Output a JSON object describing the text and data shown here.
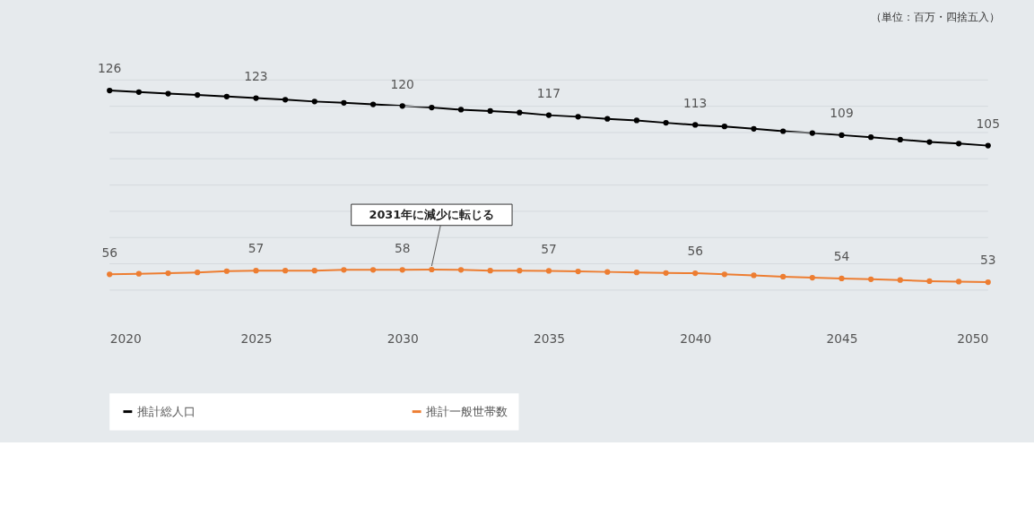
{
  "chart_data": {
    "type": "line",
    "x": [
      2020,
      2021,
      2022,
      2023,
      2024,
      2025,
      2026,
      2027,
      2028,
      2029,
      2030,
      2031,
      2032,
      2033,
      2034,
      2035,
      2036,
      2037,
      2038,
      2039,
      2040,
      2041,
      2042,
      2043,
      2044,
      2045,
      2046,
      2047,
      2048,
      2049,
      2050
    ],
    "series": [
      {
        "name": "推計総人口",
        "color": "#000000",
        "values": [
          126,
          125.4,
          124.8,
          124.3,
          123.7,
          123.1,
          122.5,
          121.8,
          121.3,
          120.7,
          120.1,
          119.5,
          118.7,
          118.2,
          117.6,
          116.6,
          116.0,
          115.2,
          114.6,
          113.7,
          112.9,
          112.3,
          111.4,
          110.5,
          109.8,
          109.0,
          108.2,
          107.3,
          106.4,
          105.8,
          105.0
        ],
        "value_labels": [
          "126",
          null,
          null,
          null,
          null,
          "123",
          null,
          null,
          null,
          null,
          "120",
          null,
          null,
          null,
          null,
          "117",
          null,
          null,
          null,
          null,
          "113",
          null,
          null,
          null,
          null,
          "109",
          null,
          null,
          null,
          null,
          "105"
        ]
      },
      {
        "name": "推計一般世帯数",
        "color": "#ed7d31",
        "values": [
          56.0,
          56.2,
          56.4,
          56.7,
          57.2,
          57.4,
          57.4,
          57.4,
          57.7,
          57.7,
          57.7,
          57.8,
          57.7,
          57.4,
          57.4,
          57.3,
          57.1,
          56.9,
          56.7,
          56.5,
          56.4,
          56.0,
          55.6,
          55.1,
          54.7,
          54.4,
          54.1,
          53.8,
          53.4,
          53.2,
          53.0
        ],
        "value_labels": [
          "56",
          null,
          null,
          null,
          null,
          "57",
          null,
          null,
          null,
          null,
          "58",
          null,
          null,
          null,
          null,
          "57",
          null,
          null,
          null,
          null,
          "56",
          null,
          null,
          null,
          null,
          "54",
          null,
          null,
          null,
          null,
          "53"
        ]
      }
    ],
    "xlim": [
      2020,
      2050
    ],
    "xticks": [
      2020,
      2025,
      2030,
      2035,
      2040,
      2045,
      2050
    ],
    "yticks": [
      {
        "value": 50,
        "label": null
      },
      {
        "value": 60,
        "label": null
      },
      {
        "value": 70,
        "label": null
      },
      {
        "value": 80,
        "label": null
      },
      {
        "value": 90,
        "label": null
      },
      {
        "value": 100,
        "label": null
      },
      {
        "value": 110,
        "label": null
      },
      {
        "value": 120,
        "label": null
      },
      {
        "value": 130,
        "label": null
      }
    ],
    "tick_labels": "x",
    "grid": "y",
    "legend": "bottom",
    "marker": "circle",
    "line_style": "solid",
    "annotations": [
      "（単位：百万・四捨五入）",
      {
        "text": "2031年に減少に転じる",
        "x": 2031,
        "y": 57.8
      }
    ]
  }
}
